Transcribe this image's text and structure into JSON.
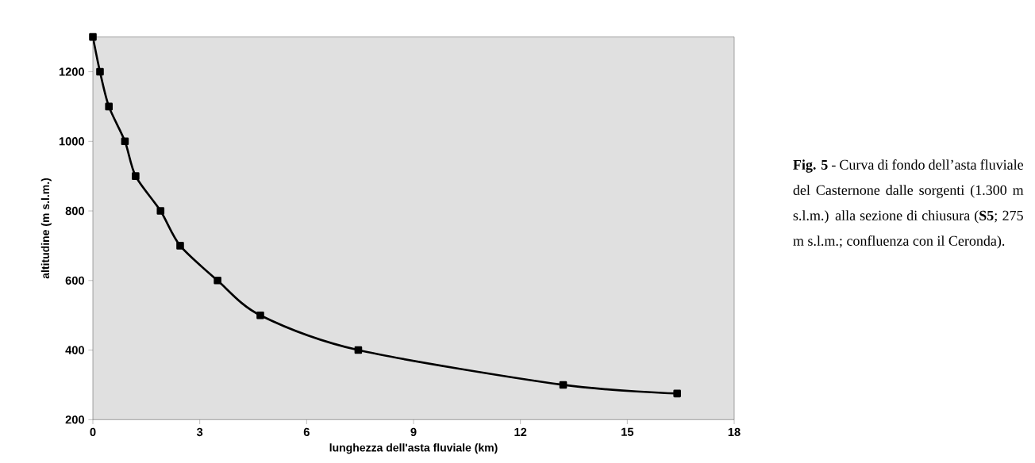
{
  "chart_data": {
    "type": "line",
    "xlabel": "lunghezza dell'asta fluviale (km)",
    "ylabel": "altitudine (m s.l.m.)",
    "annotations": [
      "**Fig. 5** - Curva di fondo dell’asta fluviale del Casternone dalle sorgenti (1.300 m s.l.m.) alla sezione di chiusura (**S5**; 275 m s.l.m.; confluenza con il Ceronda)."
    ],
    "x": [
      0,
      0.2,
      0.45,
      0.9,
      1.2,
      1.9,
      2.45,
      3.5,
      4.7,
      7.45,
      13.2,
      16.4
    ],
    "values": [
      1300,
      1200,
      1100,
      1000,
      900,
      800,
      700,
      600,
      500,
      400,
      300,
      275
    ],
    "color": "#000000",
    "marker": "square",
    "line_style": "solid",
    "grid": false,
    "xlim": [
      0,
      18
    ],
    "xticks": [
      0,
      3,
      6,
      9,
      12,
      15,
      18
    ],
    "ylim": [
      200,
      1300
    ],
    "yticks": [
      200,
      400,
      600,
      800,
      1000,
      1200
    ]
  }
}
